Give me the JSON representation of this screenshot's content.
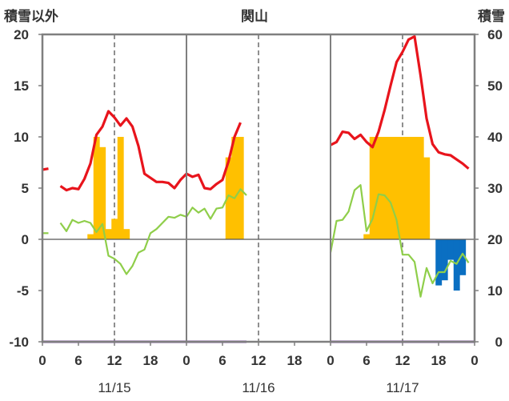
{
  "chart_data": {
    "type": "line",
    "title": "関山",
    "left_axis_label": "積雪以外",
    "right_axis_label": "積雪",
    "left_ylim": [
      -10,
      20
    ],
    "left_ticks": [
      "20",
      "15",
      "10",
      "5",
      "0",
      "-5",
      "-10"
    ],
    "right_ylim": [
      0,
      60
    ],
    "right_ticks": [
      "60",
      "50",
      "40",
      "30",
      "20",
      "10",
      "0"
    ],
    "x_hours": [
      0,
      72
    ],
    "x_tick_labels": [
      "0",
      "6",
      "12",
      "18",
      "0",
      "6",
      "12",
      "18",
      "0",
      "6",
      "12",
      "18",
      "0"
    ],
    "day_labels": [
      "11/15",
      "11/16",
      "11/17"
    ],
    "colors": {
      "temperature": "#e8141c",
      "green_line": "#8fce4a",
      "orange_bars": "#ffc000",
      "blue_bars": "#0a6fc2",
      "purple_line": "#7030a0",
      "frame": "#7f7f7f"
    },
    "series": [
      {
        "key": "temperature",
        "segments": [
          [
            [
              0,
              6.8
            ],
            [
              1,
              6.9
            ]
          ],
          [
            [
              3,
              5.2
            ],
            [
              4,
              4.8
            ],
            [
              5,
              5.0
            ],
            [
              6,
              4.9
            ],
            [
              7,
              5.9
            ],
            [
              8,
              7.4
            ],
            [
              9,
              10.2
            ],
            [
              10,
              11.0
            ],
            [
              11,
              12.5
            ],
            [
              12,
              11.9
            ],
            [
              13,
              11.1
            ],
            [
              14,
              11.8
            ],
            [
              15,
              11.0
            ],
            [
              16,
              9.1
            ],
            [
              17,
              6.4
            ],
            [
              18,
              6.0
            ],
            [
              19,
              5.6
            ],
            [
              20,
              5.6
            ],
            [
              21,
              5.5
            ],
            [
              22,
              5.0
            ],
            [
              23,
              5.8
            ],
            [
              24,
              6.4
            ],
            [
              25,
              6.1
            ],
            [
              26,
              6.3
            ],
            [
              27,
              5.0
            ],
            [
              28,
              4.9
            ],
            [
              29,
              5.4
            ],
            [
              30,
              5.8
            ],
            [
              31,
              7.6
            ],
            [
              32,
              10.0
            ],
            [
              33,
              11.4
            ]
          ],
          [
            [
              48,
              9.2
            ],
            [
              49,
              9.5
            ],
            [
              50,
              10.5
            ],
            [
              51,
              10.4
            ],
            [
              52,
              9.8
            ],
            [
              53,
              10.2
            ],
            [
              54,
              9.5
            ],
            [
              55,
              9.0
            ],
            [
              56,
              10.5
            ],
            [
              57,
              12.6
            ],
            [
              58,
              15.0
            ],
            [
              59,
              17.3
            ],
            [
              60,
              18.3
            ],
            [
              61,
              19.5
            ],
            [
              62,
              19.8
            ],
            [
              63,
              16.0
            ],
            [
              64,
              11.8
            ],
            [
              65,
              9.3
            ],
            [
              66,
              8.5
            ],
            [
              67,
              8.3
            ],
            [
              68,
              8.2
            ],
            [
              69,
              7.8
            ],
            [
              70,
              7.4
            ],
            [
              71,
              6.9
            ]
          ]
        ]
      },
      {
        "key": "green_line",
        "segments": [
          [
            [
              0,
              0.6
            ],
            [
              1,
              0.6
            ]
          ],
          [
            [
              3,
              1.6
            ],
            [
              4,
              0.8
            ],
            [
              5,
              1.9
            ],
            [
              6,
              1.6
            ],
            [
              7,
              1.8
            ],
            [
              8,
              1.6
            ],
            [
              9,
              0.7
            ],
            [
              10,
              1.5
            ],
            [
              11,
              -1.6
            ],
            [
              12,
              -1.9
            ],
            [
              13,
              -2.4
            ],
            [
              14,
              -3.4
            ],
            [
              15,
              -2.6
            ],
            [
              16,
              -1.3
            ],
            [
              17,
              -1.0
            ],
            [
              18,
              0.6
            ],
            [
              19,
              1.0
            ],
            [
              20,
              1.6
            ],
            [
              21,
              2.2
            ],
            [
              22,
              2.1
            ],
            [
              23,
              2.4
            ],
            [
              24,
              2.2
            ],
            [
              25,
              3.1
            ],
            [
              26,
              2.6
            ],
            [
              27,
              3.0
            ],
            [
              28,
              2.0
            ],
            [
              29,
              3.0
            ],
            [
              30,
              3.1
            ],
            [
              31,
              4.3
            ],
            [
              32,
              4.0
            ],
            [
              33,
              4.9
            ],
            [
              34,
              4.3
            ]
          ],
          [
            [
              48,
              -1.3
            ],
            [
              49,
              1.8
            ],
            [
              50,
              1.9
            ],
            [
              51,
              2.7
            ],
            [
              52,
              4.8
            ],
            [
              53,
              5.3
            ],
            [
              54,
              0.8
            ],
            [
              55,
              2.0
            ],
            [
              56,
              4.4
            ],
            [
              57,
              4.3
            ],
            [
              58,
              3.6
            ],
            [
              59,
              1.9
            ],
            [
              60,
              -1.5
            ],
            [
              61,
              -1.5
            ],
            [
              62,
              -2.2
            ],
            [
              63,
              -5.6
            ],
            [
              64,
              -2.8
            ],
            [
              65,
              -4.3
            ],
            [
              66,
              -3.2
            ],
            [
              67,
              -3.2
            ],
            [
              68,
              -2.1
            ],
            [
              69,
              -2.4
            ],
            [
              70,
              -1.4
            ],
            [
              71,
              -2.3
            ]
          ]
        ]
      },
      {
        "key": "orange_bars",
        "axis": "right",
        "bars": [
          [
            8,
            21
          ],
          [
            9,
            40
          ],
          [
            10,
            38
          ],
          [
            11,
            22
          ],
          [
            12,
            24
          ],
          [
            13,
            40
          ],
          [
            14,
            22
          ],
          [
            31,
            36
          ],
          [
            32,
            40
          ],
          [
            33,
            40
          ],
          [
            54,
            21
          ],
          [
            55,
            40
          ],
          [
            56,
            40
          ],
          [
            57,
            40
          ],
          [
            58,
            40
          ],
          [
            59,
            40
          ],
          [
            60,
            40
          ],
          [
            61,
            40
          ],
          [
            62,
            40
          ],
          [
            63,
            40
          ],
          [
            64,
            36
          ]
        ]
      },
      {
        "key": "blue_bars",
        "axis": "right",
        "bars": [
          [
            65,
            20
          ],
          [
            66,
            11
          ],
          [
            67,
            12
          ],
          [
            68,
            16
          ],
          [
            69,
            10
          ],
          [
            70,
            13
          ],
          [
            71,
            20
          ]
        ]
      },
      {
        "key": "purple_line",
        "segments": [
          [
            [
              0,
              -10
            ],
            [
              34,
              -10
            ]
          ],
          [
            [
              48,
              -10
            ],
            [
              72,
              -10
            ]
          ]
        ]
      }
    ],
    "hour_separators": [
      24,
      48
    ],
    "dashed_noon_lines": [
      12,
      36,
      60
    ]
  }
}
